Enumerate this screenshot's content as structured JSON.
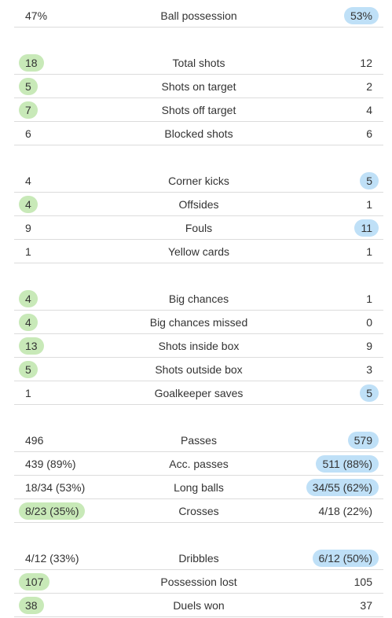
{
  "colors": {
    "home_highlight": "#c8e9b8",
    "away_highlight": "#bfe0f7",
    "divider": "#dcdcdc",
    "text": "#333333"
  },
  "groups": [
    {
      "rows": [
        {
          "label": "Ball possession",
          "home": "47%",
          "away": "53%",
          "leader": "away"
        }
      ]
    },
    {
      "rows": [
        {
          "label": "Total shots",
          "home": "18",
          "away": "12",
          "leader": "home"
        },
        {
          "label": "Shots on target",
          "home": "5",
          "away": "2",
          "leader": "home"
        },
        {
          "label": "Shots off target",
          "home": "7",
          "away": "4",
          "leader": "home"
        },
        {
          "label": "Blocked shots",
          "home": "6",
          "away": "6",
          "leader": "none"
        }
      ]
    },
    {
      "rows": [
        {
          "label": "Corner kicks",
          "home": "4",
          "away": "5",
          "leader": "away"
        },
        {
          "label": "Offsides",
          "home": "4",
          "away": "1",
          "leader": "home"
        },
        {
          "label": "Fouls",
          "home": "9",
          "away": "11",
          "leader": "away"
        },
        {
          "label": "Yellow cards",
          "home": "1",
          "away": "1",
          "leader": "none"
        }
      ]
    },
    {
      "rows": [
        {
          "label": "Big chances",
          "home": "4",
          "away": "1",
          "leader": "home"
        },
        {
          "label": "Big chances missed",
          "home": "4",
          "away": "0",
          "leader": "home"
        },
        {
          "label": "Shots inside box",
          "home": "13",
          "away": "9",
          "leader": "home"
        },
        {
          "label": "Shots outside box",
          "home": "5",
          "away": "3",
          "leader": "home"
        },
        {
          "label": "Goalkeeper saves",
          "home": "1",
          "away": "5",
          "leader": "away"
        }
      ]
    },
    {
      "rows": [
        {
          "label": "Passes",
          "home": "496",
          "away": "579",
          "leader": "away"
        },
        {
          "label": "Acc. passes",
          "home": "439 (89%)",
          "away": "511 (88%)",
          "leader": "away"
        },
        {
          "label": "Long balls",
          "home": "18/34 (53%)",
          "away": "34/55 (62%)",
          "leader": "away"
        },
        {
          "label": "Crosses",
          "home": "8/23 (35%)",
          "away": "4/18 (22%)",
          "leader": "home"
        }
      ]
    },
    {
      "rows": [
        {
          "label": "Dribbles",
          "home": "4/12 (33%)",
          "away": "6/12 (50%)",
          "leader": "away"
        },
        {
          "label": "Possession lost",
          "home": "107",
          "away": "105",
          "leader": "home"
        },
        {
          "label": "Duels won",
          "home": "38",
          "away": "37",
          "leader": "home"
        }
      ]
    }
  ]
}
